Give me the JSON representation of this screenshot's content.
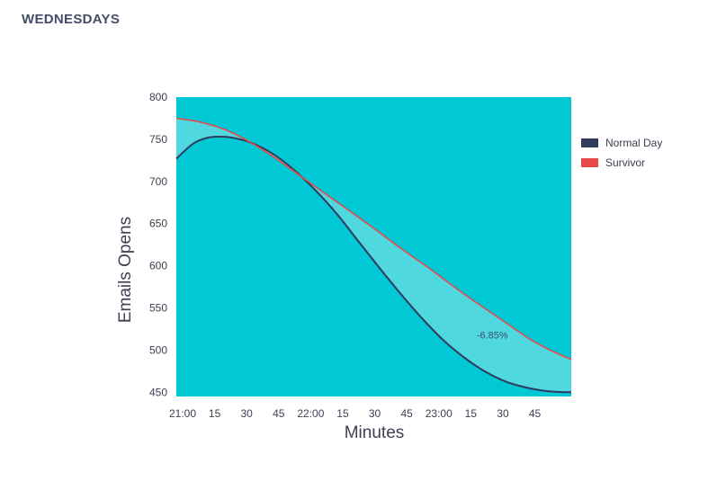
{
  "page": {
    "title": "WEDNESDAYS"
  },
  "colors": {
    "plot_background": "#00c8d4",
    "gap_fill": "#4fd8e0",
    "normal_day": "#2f3a5c",
    "survivor": "#e8494a"
  },
  "chart_data": {
    "type": "line",
    "xlabel": "Minutes",
    "ylabel": "Emails Opens",
    "x_tick_labels": [
      "21:00",
      "15",
      "30",
      "45",
      "22:00",
      "15",
      "30",
      "45",
      "23:00",
      "15",
      "30",
      "45"
    ],
    "x_tick_minutes": [
      0,
      15,
      30,
      45,
      60,
      75,
      90,
      105,
      120,
      135,
      150,
      165
    ],
    "xlim": [
      0,
      185
    ],
    "y_ticks": [
      450,
      500,
      550,
      600,
      650,
      700,
      750,
      800
    ],
    "ylim": [
      445,
      800
    ],
    "grid": false,
    "legend_position": "right",
    "series": [
      {
        "name": "Normal Day",
        "color": "#2f3a5c",
        "x": [
          0,
          8,
          15,
          22,
          28,
          35,
          45,
          55,
          65,
          75,
          85,
          95,
          105,
          115,
          125,
          135,
          145,
          155,
          165,
          175,
          185
        ],
        "values": [
          727,
          745,
          752,
          753,
          751,
          746,
          733,
          714,
          690,
          662,
          630,
          598,
          567,
          538,
          512,
          491,
          474,
          462,
          455,
          451,
          450
        ]
      },
      {
        "name": "Survivor",
        "color": "#e8494a",
        "x": [
          0,
          10,
          20,
          30,
          45,
          60,
          75,
          90,
          105,
          120,
          135,
          150,
          165,
          175,
          185
        ],
        "values": [
          775,
          771,
          764,
          753,
          730,
          703,
          676,
          649,
          621,
          594,
          566,
          540,
          514,
          500,
          489
        ]
      }
    ],
    "annotations": [
      {
        "text": "-6.85%",
        "x": 148,
        "y": 514
      }
    ]
  }
}
